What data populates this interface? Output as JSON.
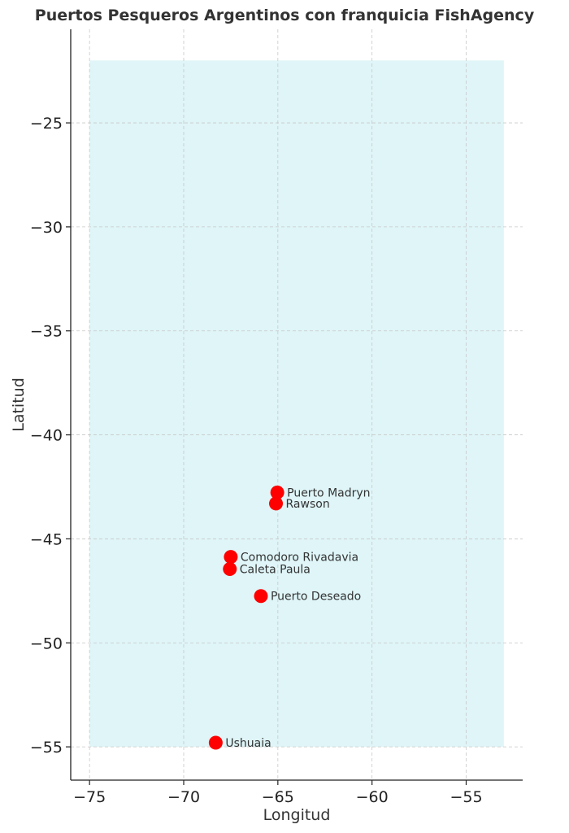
{
  "chart_data": {
    "type": "scatter",
    "title": "Puertos Pesqueros Argentinos con franquicia FishAgency",
    "xlabel": "Longitud",
    "ylabel": "Latitud",
    "xlim": [
      -76,
      -52
    ],
    "ylim": [
      -56.6,
      -20.5
    ],
    "xticks": [
      -75,
      -70,
      -65,
      -60,
      -55
    ],
    "yticks": [
      -25,
      -30,
      -35,
      -40,
      -45,
      -50,
      -55
    ],
    "tick_labels_x": [
      "−75",
      "−70",
      "−65",
      "−60",
      "−55"
    ],
    "tick_labels_y": [
      "−25",
      "−30",
      "−35",
      "−40",
      "−45",
      "−50",
      "−55"
    ],
    "grid": true,
    "region": {
      "x": [
        -75,
        -53
      ],
      "y": [
        -55,
        -22
      ],
      "color": "#dff5f8"
    },
    "marker_color": "#ff0000",
    "points": [
      {
        "label": "Puerto Madryn",
        "x": -65.03,
        "y": -42.77
      },
      {
        "label": "Rawson",
        "x": -65.1,
        "y": -43.3
      },
      {
        "label": "Comodoro Rivadavia",
        "x": -67.5,
        "y": -45.87
      },
      {
        "label": "Caleta Paula",
        "x": -67.55,
        "y": -46.45
      },
      {
        "label": "Puerto Deseado",
        "x": -65.9,
        "y": -47.75
      },
      {
        "label": "Ushuaia",
        "x": -68.3,
        "y": -54.8
      }
    ]
  }
}
